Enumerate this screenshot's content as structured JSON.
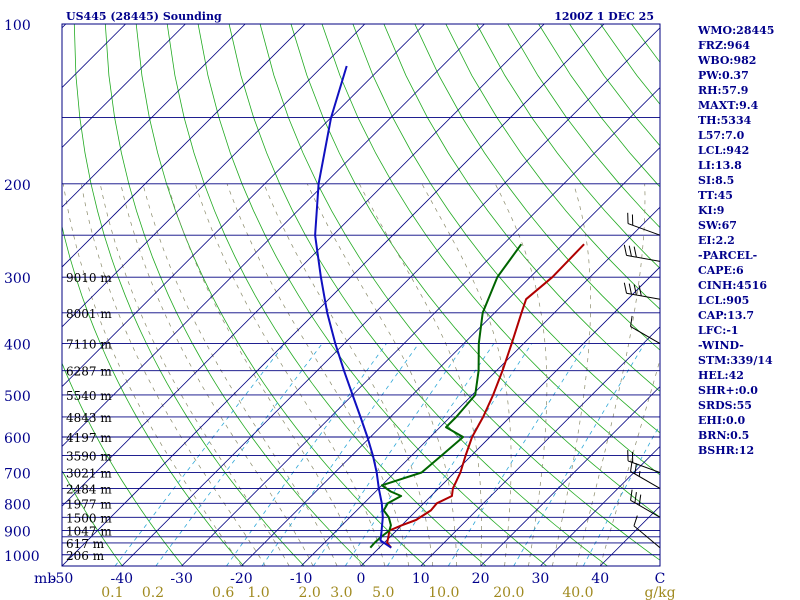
{
  "chart_data": {
    "type": "line",
    "title_left": "US445 (28445) Sounding",
    "title_right": "1200Z  1 DEC 25",
    "xlabel_prefix": "mb",
    "temp_ticks": [
      -50,
      -40,
      -30,
      -20,
      -10,
      0,
      10,
      20,
      30,
      40
    ],
    "temp_tick_labels": [
      "-50",
      "-40",
      "-30",
      "-20",
      "-10",
      "0",
      "10",
      "20",
      "30",
      "40"
    ],
    "temp_end_label": "C",
    "xlim": [
      -50,
      50
    ],
    "mixing_ratio_labels": [
      "0.1",
      "0.2",
      "0.6",
      "1.0",
      "2.0",
      "3.0",
      "5.0",
      "10.0",
      "20.0",
      "40.0"
    ],
    "mixing_ratio_unit": "g/kg",
    "pressure_levels": [
      100,
      150,
      200,
      250,
      300,
      350,
      400,
      450,
      500,
      550,
      600,
      650,
      700,
      750,
      800,
      850,
      900,
      925,
      950,
      1000
    ],
    "pressure_labels": [
      "100",
      "200",
      "300",
      "400",
      "500",
      "600",
      "700",
      "800",
      "900",
      "1000"
    ],
    "height_labels": [
      {
        "p": 300,
        "text": "9010 m"
      },
      {
        "p": 350,
        "text": "8001 m"
      },
      {
        "p": 400,
        "text": "7110 m"
      },
      {
        "p": 450,
        "text": "6287 m"
      },
      {
        "p": 500,
        "text": "5540 m"
      },
      {
        "p": 550,
        "text": "4843 m"
      },
      {
        "p": 600,
        "text": "4197 m"
      },
      {
        "p": 650,
        "text": "3590 m"
      },
      {
        "p": 700,
        "text": "3021 m"
      },
      {
        "p": 750,
        "text": "2484 m"
      },
      {
        "p": 800,
        "text": "1977 m"
      },
      {
        "p": 850,
        "text": "1500 m"
      },
      {
        "p": 900,
        "text": "1047 m"
      },
      {
        "p": 950,
        "text": "617 m"
      },
      {
        "p": 1000,
        "text": "206 m"
      }
    ],
    "series": [
      {
        "name": "temperature",
        "color": "#b00000",
        "points": [
          [
            970,
            2.0
          ],
          [
            950,
            0.5
          ],
          [
            925,
            -0.3
          ],
          [
            900,
            -1.2
          ],
          [
            880,
            0.0
          ],
          [
            860,
            1.5
          ],
          [
            825,
            2.4
          ],
          [
            800,
            2.2
          ],
          [
            775,
            3.5
          ],
          [
            750,
            2.4
          ],
          [
            700,
            1.0
          ],
          [
            650,
            -1.0
          ],
          [
            600,
            -3.0
          ],
          [
            550,
            -4.5
          ],
          [
            500,
            -6.5
          ],
          [
            450,
            -9.0
          ],
          [
            400,
            -12.0
          ],
          [
            350,
            -15.5
          ],
          [
            330,
            -17.0
          ],
          [
            300,
            -16.3
          ],
          [
            260,
            -16.5
          ]
        ]
      },
      {
        "name": "dewpoint",
        "color": "#006400",
        "points": [
          [
            970,
            -1.5
          ],
          [
            950,
            -1.6
          ],
          [
            925,
            -1.5
          ],
          [
            900,
            -1.2
          ],
          [
            880,
            -1.8
          ],
          [
            850,
            -3.5
          ],
          [
            825,
            -5.5
          ],
          [
            800,
            -6.0
          ],
          [
            775,
            -5.0
          ],
          [
            760,
            -7.5
          ],
          [
            740,
            -10.0
          ],
          [
            700,
            -5.5
          ],
          [
            650,
            -5.0
          ],
          [
            600,
            -4.5
          ],
          [
            575,
            -9.0
          ],
          [
            550,
            -9.0
          ],
          [
            500,
            -9.5
          ],
          [
            450,
            -13.0
          ],
          [
            400,
            -17.5
          ],
          [
            350,
            -22.0
          ],
          [
            300,
            -25.5
          ],
          [
            260,
            -27.0
          ]
        ]
      },
      {
        "name": "parcel",
        "color": "#1010c0",
        "points": [
          [
            970,
            2.0
          ],
          [
            940,
            -1.0
          ],
          [
            905,
            -2.3
          ],
          [
            850,
            -4.5
          ],
          [
            800,
            -7.0
          ],
          [
            750,
            -10.0
          ],
          [
            700,
            -13.0
          ],
          [
            650,
            -16.5
          ],
          [
            600,
            -20.5
          ],
          [
            550,
            -25.0
          ],
          [
            500,
            -30.0
          ],
          [
            450,
            -35.5
          ],
          [
            400,
            -41.5
          ],
          [
            350,
            -48.0
          ],
          [
            300,
            -55.0
          ],
          [
            250,
            -63.0
          ],
          [
            200,
            -71.0
          ],
          [
            150,
            -80.0
          ],
          [
            120,
            -86.0
          ]
        ]
      }
    ],
    "wind_barbs": [
      {
        "p": 970,
        "dir": 310,
        "spd": 10
      },
      {
        "p": 850,
        "dir": 300,
        "spd": 30
      },
      {
        "p": 750,
        "dir": 300,
        "spd": 25
      },
      {
        "p": 700,
        "dir": 290,
        "spd": 20
      },
      {
        "p": 400,
        "dir": 300,
        "spd": 10
      },
      {
        "p": 330,
        "dir": 280,
        "spd": 40
      },
      {
        "p": 280,
        "dir": 280,
        "spd": 30
      },
      {
        "p": 250,
        "dir": 290,
        "spd": 20
      }
    ]
  },
  "indices": [
    "WMO:28445",
    "FRZ:964",
    "WBO:982",
    "PW:0.37",
    "RH:57.9",
    "MAXT:9.4",
    "TH:5334",
    "L57:7.0",
    "LCL:942",
    "LI:13.8",
    "SI:8.5",
    "TT:45",
    "KI:9",
    "SW:67",
    "EI:2.2",
    "-PARCEL-",
    "CAPE:6",
    "CINH:4516",
    "LCL:905",
    "CAP:13.7",
    "LFC:-1",
    "-WIND-",
    "STM:339/14",
    "HEL:42",
    "SHR+:0.0",
    "SRDS:55",
    "EHI:0.0",
    "BRN:0.5",
    "BSHR:12"
  ]
}
